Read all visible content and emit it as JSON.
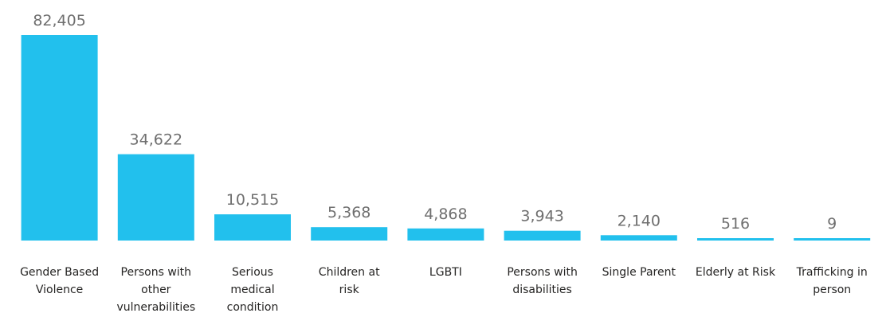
{
  "chart_data": {
    "type": "bar",
    "title": "",
    "xlabel": "",
    "ylabel": "",
    "categories": [
      [
        "Gender Based",
        "Violence"
      ],
      [
        "Persons with",
        "other",
        "vulnerabilities"
      ],
      [
        "Serious",
        "medical",
        "condition"
      ],
      [
        "Children at",
        "risk"
      ],
      [
        "LGBTI"
      ],
      [
        "Persons with",
        "disabilities"
      ],
      [
        "Single Parent"
      ],
      [
        "Elderly at Risk"
      ],
      [
        "Trafficking in",
        "person"
      ]
    ],
    "values": [
      82405,
      34622,
      10515,
      5368,
      4868,
      3943,
      2140,
      516,
      9
    ],
    "value_labels": [
      "82,405",
      "34,622",
      "10,515",
      "5,368",
      "4,868",
      "3,943",
      "2,140",
      "516",
      "9"
    ],
    "ylim": [
      0,
      82405
    ],
    "grid": false,
    "legend": "none",
    "bar_color": "#22c0ed",
    "value_label_color": "#6f6f6f",
    "category_label_color": "#252423"
  }
}
